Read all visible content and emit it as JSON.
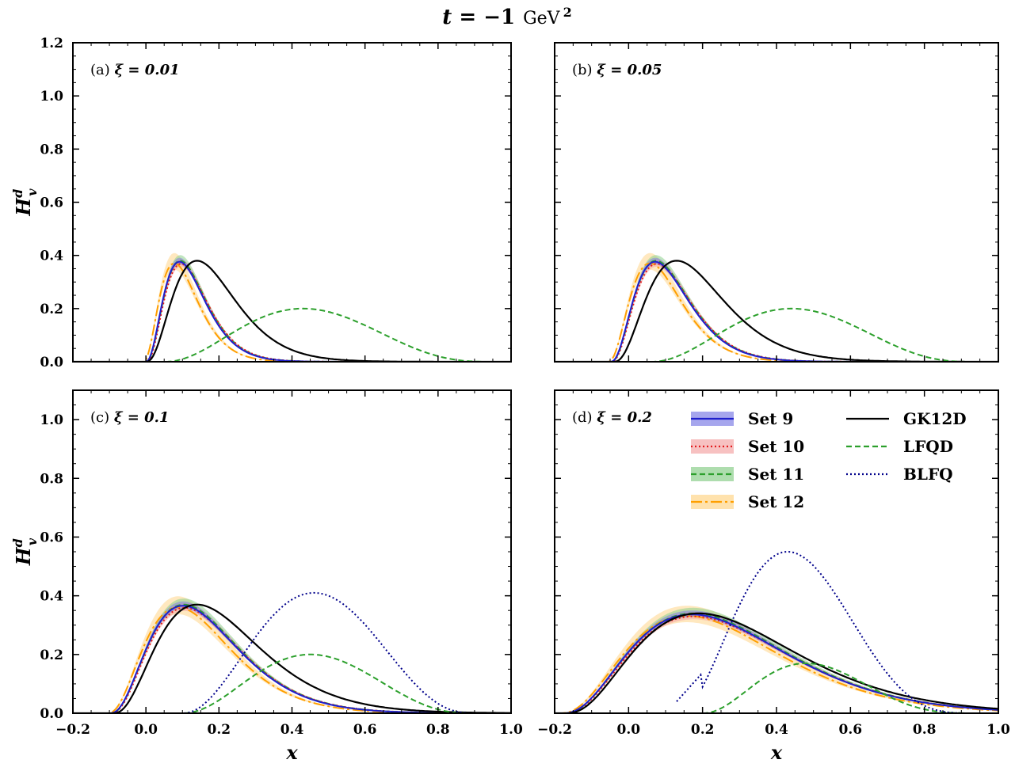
{
  "figure": {
    "title_var": "t",
    "title_eq": " = −1",
    "title_unit": "GeV",
    "title_exp": "2"
  },
  "colors": {
    "set9": "#1f1fcc",
    "set9_band": "#8080e6",
    "set10": "#e31a1c",
    "set10_band": "#f4a6a6",
    "set11": "#2ca02c",
    "set11_band": "#8ccf8c",
    "set12": "#ff9f00",
    "set12_band": "#ffd58a",
    "gk12d": "#000000",
    "lfqd": "#2ca02c",
    "blfq": "#00008b"
  },
  "legend": {
    "set9": "Set 9",
    "set10": "Set 10",
    "set11": "Set 11",
    "set12": "Set 12",
    "gk12d": "GK12D",
    "lfqd": "LFQD",
    "blfq": "BLFQ"
  },
  "chart_data": [
    {
      "type": "line",
      "panel": "(a)",
      "xi_label": "ξ = 0.01",
      "xi": 0.01,
      "xlabel": "",
      "ylabel_base": "H",
      "ylabel_sup": "d",
      "ylabel_sub": "v",
      "xlim": [
        -0.2,
        1.0
      ],
      "ylim": [
        0.0,
        1.2
      ],
      "xticks": [
        -0.2,
        0.0,
        0.2,
        0.4,
        0.6,
        0.8,
        1.0
      ],
      "xticklabels_shown": false,
      "xticklabels": [
        "−0.2",
        "0.0",
        "0.2",
        "0.4",
        "0.6",
        "0.8",
        "1.0"
      ],
      "yticks": [
        0.0,
        0.2,
        0.4,
        0.6,
        0.8,
        1.0,
        1.2
      ],
      "yticklabels_shown": true,
      "yticklabels": [
        "0.0",
        "0.2",
        "0.4",
        "0.6",
        "0.8",
        "1.0",
        "1.2"
      ],
      "sets": {
        "onset": -0.002,
        "peak_x": 0.09,
        "peak_y": 0.38,
        "width": 0.18
      },
      "gk12d": {
        "onset": 0.0,
        "peak_x": 0.14,
        "peak_y": 0.38,
        "width": 0.24
      },
      "lfqd": {
        "x0": 0.05,
        "x1": 0.95,
        "peak_x": 0.43,
        "peak_y": 0.2
      },
      "blfq": null
    },
    {
      "type": "line",
      "panel": "(b)",
      "xi_label": "ξ = 0.05",
      "xi": 0.05,
      "xlabel": "",
      "ylabel_base": "",
      "ylabel_sup": "",
      "ylabel_sub": "",
      "xlim": [
        -0.2,
        1.0
      ],
      "ylim": [
        0.0,
        1.2
      ],
      "xticks": [
        -0.2,
        0.0,
        0.2,
        0.4,
        0.6,
        0.8,
        1.0
      ],
      "xticklabels_shown": false,
      "xticklabels": [
        "−0.2",
        "0.0",
        "0.2",
        "0.4",
        "0.6",
        "0.8",
        "1.0"
      ],
      "yticks": [
        0.0,
        0.2,
        0.4,
        0.6,
        0.8,
        1.0,
        1.2
      ],
      "yticklabels_shown": false,
      "yticklabels": [
        "0.0",
        "0.2",
        "0.4",
        "0.6",
        "0.8",
        "1.0",
        "1.2"
      ],
      "sets": {
        "onset": -0.05,
        "peak_x": 0.07,
        "peak_y": 0.38,
        "width": 0.19
      },
      "gk12d": {
        "onset": -0.04,
        "peak_x": 0.13,
        "peak_y": 0.38,
        "width": 0.25
      },
      "lfqd": {
        "x0": 0.06,
        "x1": 0.93,
        "peak_x": 0.44,
        "peak_y": 0.2
      },
      "blfq": null
    },
    {
      "type": "line",
      "panel": "(c)",
      "xi_label": "ξ = 0.1",
      "xi": 0.1,
      "xlabel": "x",
      "ylabel_base": "H",
      "ylabel_sup": "d",
      "ylabel_sub": "v",
      "xlim": [
        -0.2,
        1.0
      ],
      "ylim": [
        0.0,
        1.1
      ],
      "xticks": [
        -0.2,
        0.0,
        0.2,
        0.4,
        0.6,
        0.8,
        1.0
      ],
      "xticklabels_shown": true,
      "xticklabels": [
        "−0.2",
        "0.0",
        "0.2",
        "0.4",
        "0.6",
        "0.8",
        "1.0"
      ],
      "yticks": [
        0.0,
        0.2,
        0.4,
        0.6,
        0.8,
        1.0
      ],
      "yticklabels_shown": true,
      "yticklabels": [
        "0.0",
        "0.2",
        "0.4",
        "0.6",
        "0.8",
        "1.0"
      ],
      "sets": {
        "onset": -0.1,
        "peak_x": 0.1,
        "peak_y": 0.37,
        "width": 0.2
      },
      "gk12d": {
        "onset": -0.09,
        "peak_x": 0.14,
        "peak_y": 0.37,
        "width": 0.25
      },
      "lfqd": {
        "x0": 0.1,
        "x1": 0.9,
        "peak_x": 0.45,
        "peak_y": 0.2
      },
      "blfq": {
        "x0": 0.1,
        "x1": 0.9,
        "peak_x": 0.46,
        "peak_y": 0.41
      }
    },
    {
      "type": "line",
      "panel": "(d)",
      "xi_label": "ξ = 0.2",
      "xi": 0.2,
      "xlabel": "x",
      "ylabel_base": "",
      "ylabel_sup": "",
      "ylabel_sub": "",
      "xlim": [
        -0.2,
        1.0
      ],
      "ylim": [
        0.0,
        1.1
      ],
      "xticks": [
        -0.2,
        0.0,
        0.2,
        0.4,
        0.6,
        0.8,
        1.0
      ],
      "xticklabels_shown": true,
      "xticklabels": [
        "−0.2",
        "0.0",
        "0.2",
        "0.4",
        "0.6",
        "0.8",
        "1.0"
      ],
      "yticks": [
        0.0,
        0.2,
        0.4,
        0.6,
        0.8,
        1.0
      ],
      "yticklabels_shown": false,
      "yticklabels": [
        "0.0",
        "0.2",
        "0.4",
        "0.6",
        "0.8",
        "1.0"
      ],
      "sets": {
        "onset": -0.18,
        "peak_x": 0.17,
        "peak_y": 0.34,
        "width": 0.26
      },
      "gk12d": {
        "onset": -0.17,
        "peak_x": 0.19,
        "peak_y": 0.34,
        "width": 0.29
      },
      "lfqd": {
        "x0": 0.2,
        "x1": 0.95,
        "peak_x": 0.48,
        "peak_y": 0.17
      },
      "blfq": {
        "x0": 0.13,
        "x1": 0.94,
        "peak_x": 0.43,
        "peak_y": 0.55
      }
    }
  ]
}
